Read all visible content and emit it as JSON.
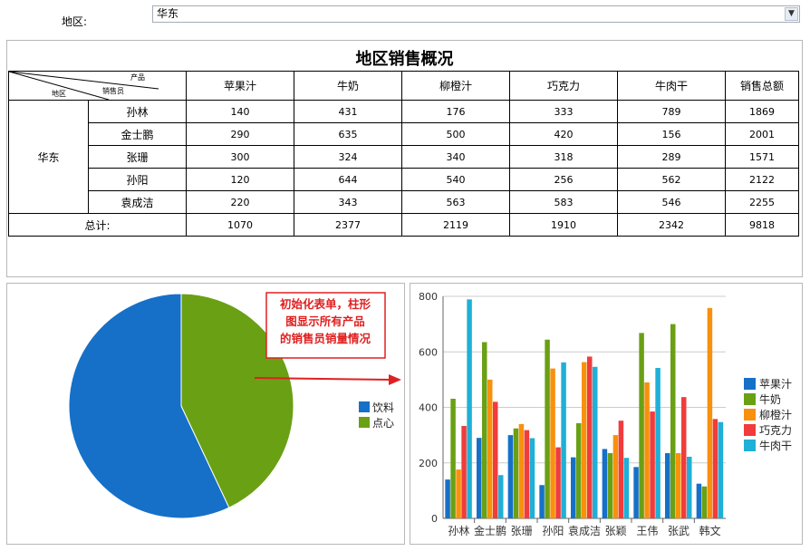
{
  "filter": {
    "label": "地区:",
    "selected": "华东"
  },
  "table": {
    "title": "地区销售概况",
    "corner": {
      "top": "产品",
      "middle": "销售员",
      "bottom": "地区"
    },
    "columns": [
      "苹果汁",
      "牛奶",
      "柳橙汁",
      "巧克力",
      "牛肉干",
      "销售总额"
    ],
    "region": "华东",
    "rows": [
      {
        "name": "孙林",
        "values": [
          "140",
          "431",
          "176",
          "333",
          "789",
          "1869"
        ]
      },
      {
        "name": "金士鹏",
        "values": [
          "290",
          "635",
          "500",
          "420",
          "156",
          "2001"
        ]
      },
      {
        "name": "张珊",
        "values": [
          "300",
          "324",
          "340",
          "318",
          "289",
          "1571"
        ]
      },
      {
        "name": "孙阳",
        "values": [
          "120",
          "644",
          "540",
          "256",
          "562",
          "2122"
        ]
      },
      {
        "name": "袁成洁",
        "values": [
          "220",
          "343",
          "563",
          "583",
          "546",
          "2255"
        ]
      }
    ],
    "total_label": "总计:",
    "totals": [
      "1070",
      "2377",
      "2119",
      "1910",
      "2342",
      "9818"
    ]
  },
  "annotation": "初始化表单，柱形图显示所有产品的销售员销量情况",
  "chart_data": [
    {
      "type": "pie",
      "labels": [
        "饮料",
        "点心"
      ],
      "values": [
        57,
        43
      ],
      "colors": [
        "#1670c8",
        "#6aa014"
      ],
      "legend": "right"
    },
    {
      "type": "bar",
      "categories": [
        "孙林",
        "金士鹏",
        "张珊",
        "孙阳",
        "袁成洁",
        "张颖",
        "王伟",
        "张武",
        "韩文"
      ],
      "series": [
        {
          "name": "苹果汁",
          "color": "#1670c8",
          "values": [
            140,
            290,
            300,
            120,
            220,
            250,
            185,
            235,
            125
          ]
        },
        {
          "name": "牛奶",
          "color": "#6aa014",
          "values": [
            431,
            635,
            324,
            644,
            343,
            235,
            668,
            700,
            115
          ]
        },
        {
          "name": "柳橙汁",
          "color": "#f7910e",
          "values": [
            176,
            500,
            340,
            540,
            563,
            300,
            490,
            235,
            758
          ]
        },
        {
          "name": "巧克力",
          "color": "#f03c3c",
          "values": [
            333,
            420,
            318,
            256,
            583,
            352,
            385,
            437,
            358
          ]
        },
        {
          "name": "牛肉干",
          "color": "#1eb0d7",
          "values": [
            789,
            156,
            289,
            562,
            546,
            218,
            542,
            222,
            347
          ]
        }
      ],
      "ylim": [
        0,
        800
      ],
      "yticks": [
        0,
        200,
        400,
        600,
        800
      ],
      "grid": true,
      "legend": "right"
    }
  ]
}
